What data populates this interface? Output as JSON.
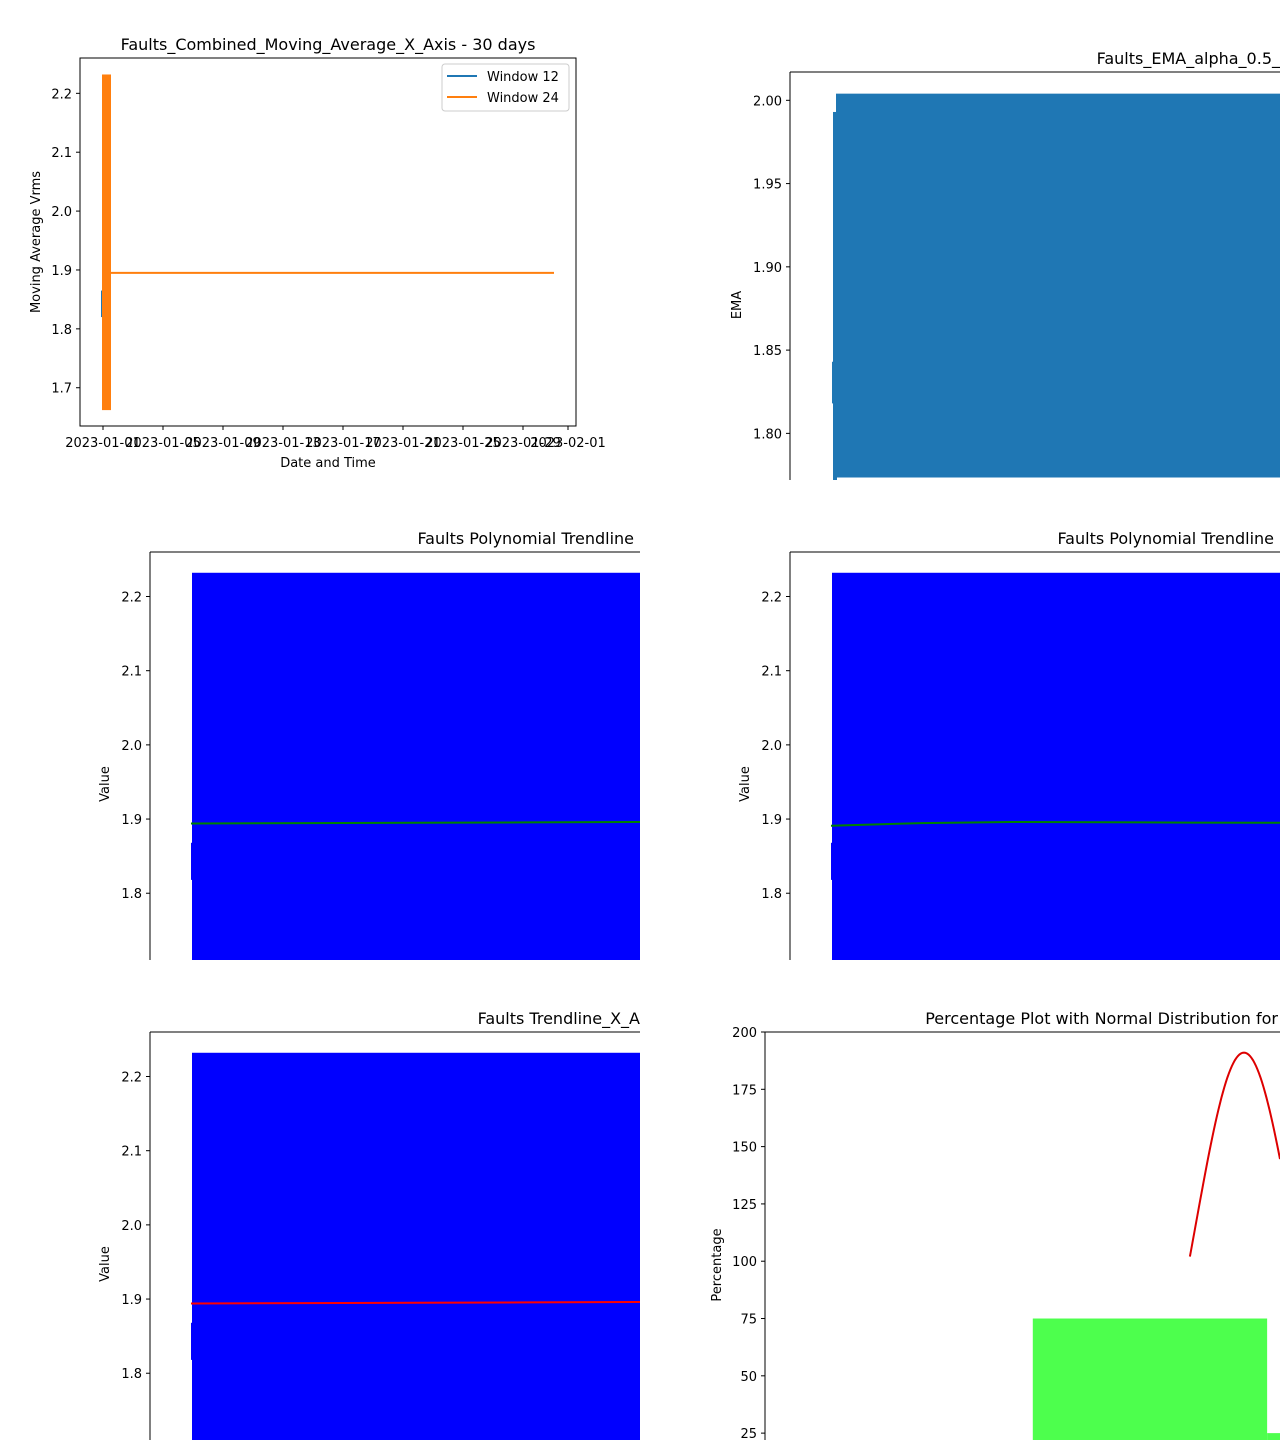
{
  "colors": {
    "matplotlib_blue": "#1f77b4",
    "matplotlib_orange": "#ff7f0e",
    "pure_blue": "#0000ff",
    "trend_green": "#008000",
    "trend_red": "#ff0000",
    "curve_red": "#dd0000",
    "hist_green": "#4dff4d"
  },
  "chart_data": [
    {
      "id": "ma",
      "type": "line",
      "title": "Faults_Combined_Moving_Average_X_Axis - 30 days",
      "xlabel": "Date and Time",
      "ylabel": "Moving Average Vrms",
      "x_ticks": [
        "2023-01-01",
        "2023-01-05",
        "2023-01-09",
        "2023-01-13",
        "2023-01-17",
        "2023-01-21",
        "2023-01-25",
        "2023-01-29",
        "2023-02-01"
      ],
      "y_ticks": [
        "1.7",
        "1.8",
        "1.9",
        "2.0",
        "2.1",
        "2.2"
      ],
      "ylim": [
        1.635,
        2.26
      ],
      "legend_position": "upper right",
      "series": [
        {
          "name": "Window 12",
          "color": "#1f77b4",
          "band_ymin": 1.82,
          "band_ymax": 1.865,
          "flat_value": 1.895
        },
        {
          "name": "Window 24",
          "color": "#ff7f0e",
          "band_ymin": 1.662,
          "band_ymax": 2.232,
          "flat_value": 1.895
        }
      ]
    },
    {
      "id": "ema",
      "type": "line",
      "title": "Faults_EMA_alpha_0.5_",
      "ylabel": "EMA",
      "y_ticks": [
        "1.80",
        "1.85",
        "1.90",
        "1.95",
        "2.00"
      ],
      "ylim": [
        1.772,
        2.017
      ],
      "series": [
        {
          "name": "EMA",
          "color": "#1f77b4",
          "band_ymin": 1.7735,
          "band_ymax": 2.004
        }
      ]
    },
    {
      "id": "poly1",
      "type": "line",
      "title": "Faults Polynomial Trendline",
      "ylabel": "Value",
      "y_ticks": [
        "1.8",
        "1.9",
        "2.0",
        "2.1",
        "2.2"
      ],
      "ylim": [
        1.71,
        2.26
      ],
      "series": [
        {
          "name": "data",
          "color": "#0000ff",
          "band_ymin": 1.71,
          "band_ymax": 2.232
        },
        {
          "name": "trend",
          "color": "#008000",
          "values": [
            1.894,
            1.8945,
            1.895,
            1.8955,
            1.896
          ]
        }
      ]
    },
    {
      "id": "poly2",
      "type": "line",
      "title": "Faults Polynomial Trendline",
      "ylabel": "Value",
      "y_ticks": [
        "1.8",
        "1.9",
        "2.0",
        "2.1",
        "2.2"
      ],
      "ylim": [
        1.71,
        2.26
      ],
      "series": [
        {
          "name": "data",
          "color": "#0000ff",
          "band_ymin": 1.71,
          "band_ymax": 2.232
        },
        {
          "name": "trend",
          "color": "#008000",
          "values": [
            1.891,
            1.8945,
            1.896,
            1.8958,
            1.8952,
            1.895
          ]
        }
      ]
    },
    {
      "id": "trend",
      "type": "line",
      "title": "Faults Trendline_X_A",
      "ylabel": "Value",
      "y_ticks": [
        "1.8",
        "1.9",
        "2.0",
        "2.1",
        "2.2"
      ],
      "ylim": [
        1.71,
        2.26
      ],
      "series": [
        {
          "name": "data",
          "color": "#0000ff",
          "band_ymin": 1.71,
          "band_ymax": 2.232
        },
        {
          "name": "trend",
          "color": "#ff0000",
          "values": [
            1.894,
            1.8945,
            1.895,
            1.8955,
            1.896
          ]
        }
      ]
    },
    {
      "id": "pct",
      "type": "bar",
      "title": "Percentage Plot with Normal Distribution for",
      "ylabel": "Percentage",
      "y_ticks": [
        "25",
        "50",
        "75",
        "100",
        "125",
        "150",
        "175",
        "200"
      ],
      "ylim": [
        22,
        200
      ],
      "bars": [
        {
          "x0": 0.52,
          "x1": 0.975,
          "value": 75
        },
        {
          "x0": 0.975,
          "x1": 1.0,
          "value": 25
        }
      ],
      "curve": {
        "x_start": 0.825,
        "x_peak": 0.93,
        "peak": 191,
        "start": 102,
        "x_end": 1.0,
        "end": 148,
        "color": "#dd0000"
      }
    }
  ]
}
